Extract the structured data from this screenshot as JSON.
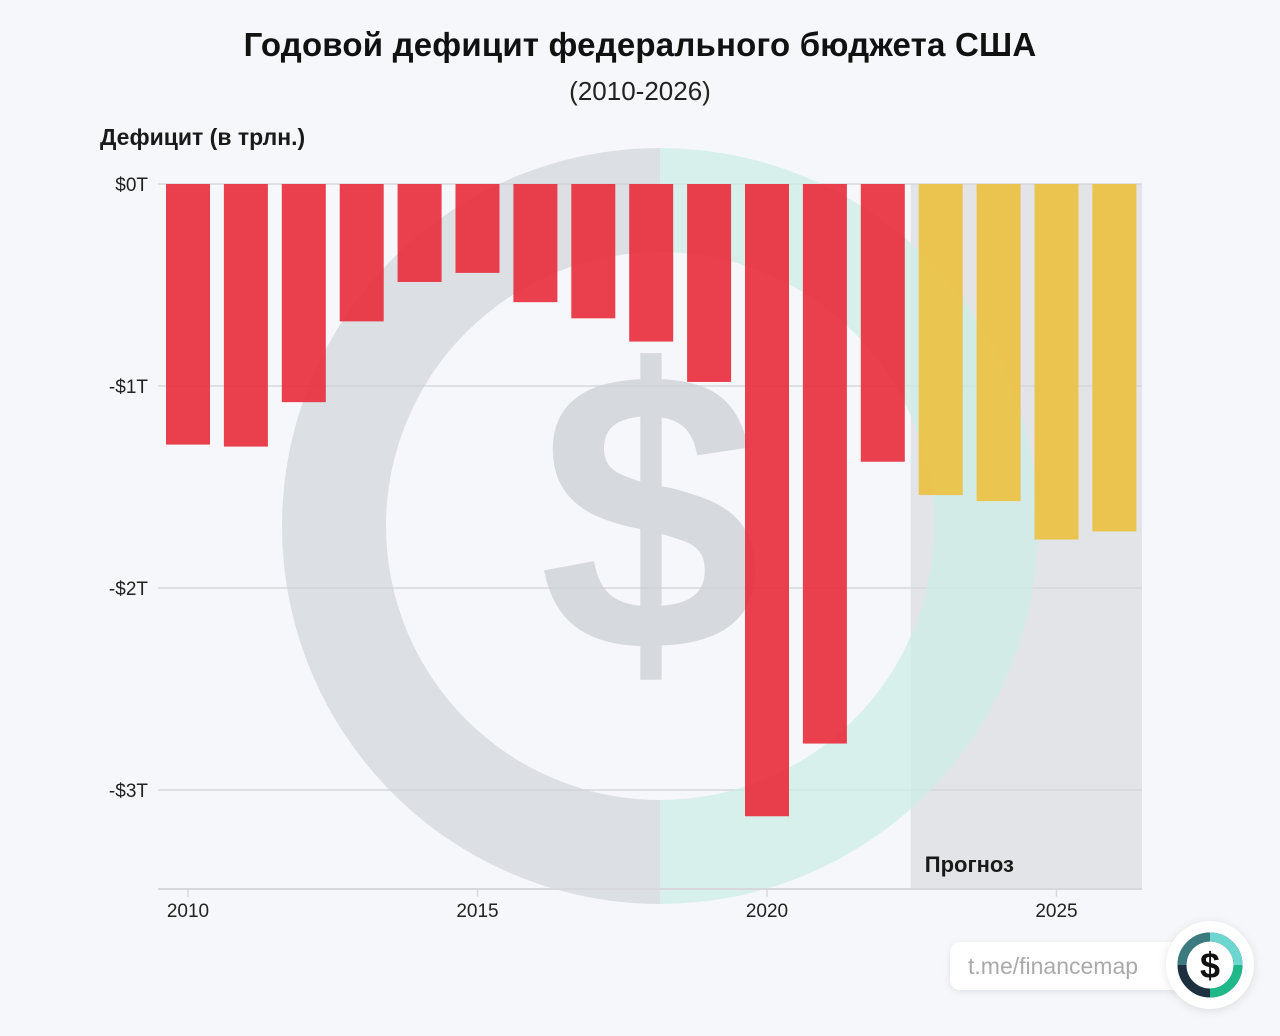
{
  "header": {
    "title": "Годовой дефицит федерального бюджета США",
    "subtitle": "(2010-2026)"
  },
  "chart_data": {
    "type": "bar",
    "title": "Годовой дефицит федерального бюджета США",
    "subtitle": "(2010-2026)",
    "ylabel": "Дефицит (в трлн.)",
    "xlabel": "",
    "ylim": [
      -3.5,
      0
    ],
    "yticks": [
      0,
      -1,
      -2,
      -3
    ],
    "ytick_labels": [
      "$0T",
      "-$1T",
      "-$2T",
      "-$3T"
    ],
    "xticks": [
      2010,
      2015,
      2020,
      2025
    ],
    "xtick_labels": [
      "2010",
      "2015",
      "2020",
      "2025"
    ],
    "grid": true,
    "categories": [
      2010,
      2011,
      2012,
      2013,
      2014,
      2015,
      2016,
      2017,
      2018,
      2019,
      2020,
      2021,
      2022,
      2023,
      2024,
      2025,
      2026
    ],
    "values": [
      -1.29,
      -1.3,
      -1.08,
      -0.68,
      -0.485,
      -0.44,
      -0.585,
      -0.665,
      -0.78,
      -0.98,
      -3.13,
      -2.77,
      -1.375,
      -1.54,
      -1.57,
      -1.76,
      -1.72
    ],
    "series_type": [
      "actual",
      "actual",
      "actual",
      "actual",
      "actual",
      "actual",
      "actual",
      "actual",
      "actual",
      "actual",
      "actual",
      "actual",
      "actual",
      "forecast",
      "forecast",
      "forecast",
      "forecast"
    ],
    "forecast_region": {
      "from_year": 2023,
      "to_year": 2026,
      "label": "Прогноз"
    },
    "colors": {
      "actual": "#e8303f",
      "forecast": "#ecc244",
      "forecast_bg": "#e3e4e8",
      "grid": "#d6d8dc"
    }
  },
  "watermark": {
    "icon": "dollar-ring-icon"
  },
  "footer": {
    "link": "t.me/financemap",
    "logo_icon": "dollar-logo-icon"
  }
}
